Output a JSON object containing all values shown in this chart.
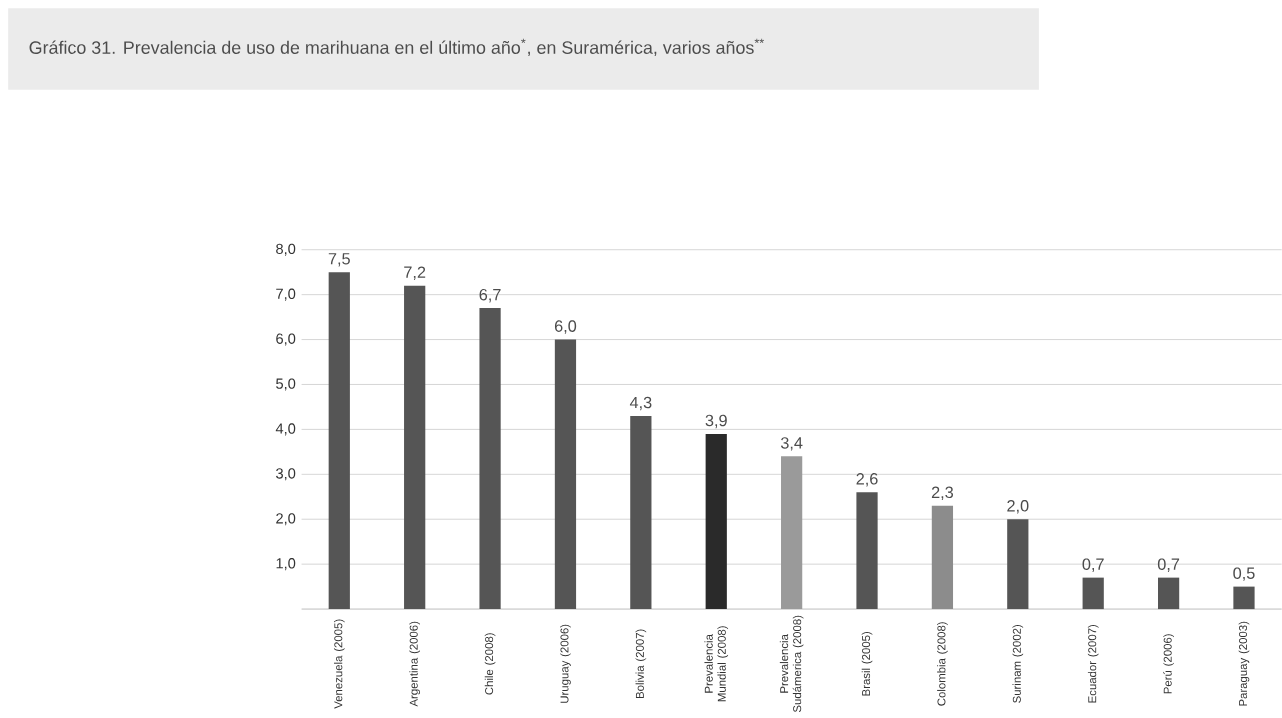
{
  "chart_data": {
    "type": "bar",
    "title": "Gráfico 31. Prevalencia de uso de marihuana en el último año$^{*}$, en Suramérica, varios años$^{**}$",
    "categories": [
      "Venezuela (2005)",
      "Argentina (2006)",
      "Chile (2008)",
      "Uruguay (2006)",
      "Bolivia (2007)",
      "Prevalencia Mundial (2008)",
      "Prevalencia Sudámerica (2008)",
      "Brasil (2005)",
      "Colombia (2008)",
      "Surinam (2002)",
      "Ecuador (2007)",
      "Perú (2006)",
      "Paraguay (2003)"
    ],
    "values": [
      7.5,
      7.2,
      6.7,
      6.0,
      4.3,
      3.9,
      3.4,
      2.6,
      2.3,
      2.0,
      0.7,
      0.7,
      0.5
    ],
    "value_labels": [
      "7,5",
      "7,2",
      "6,7",
      "6,0",
      "4,3",
      "3,9",
      "3,4",
      "2,6",
      "2,3",
      "2,0",
      "0,7",
      "0,7",
      "0,5"
    ],
    "colors": [
      "#555555",
      "#555555",
      "#555555",
      "#555555",
      "#555555",
      "#2a2a2a",
      "#9a9a9a",
      "#555555",
      "#8c8c8c",
      "#555555",
      "#555555",
      "#555555",
      "#555555"
    ],
    "ylim": [
      0,
      8
    ],
    "yticks": [
      {
        "value": 1,
        "label": "1,0"
      },
      {
        "value": 2,
        "label": "2,0"
      },
      {
        "value": 3,
        "label": "3,0"
      },
      {
        "value": 4,
        "label": "4,0"
      },
      {
        "value": 5,
        "label": "5,0"
      },
      {
        "value": 6,
        "label": "6,0"
      },
      {
        "value": 7,
        "label": "7,0"
      },
      {
        "value": 8,
        "label": "8,0"
      }
    ],
    "grid": "y"
  }
}
